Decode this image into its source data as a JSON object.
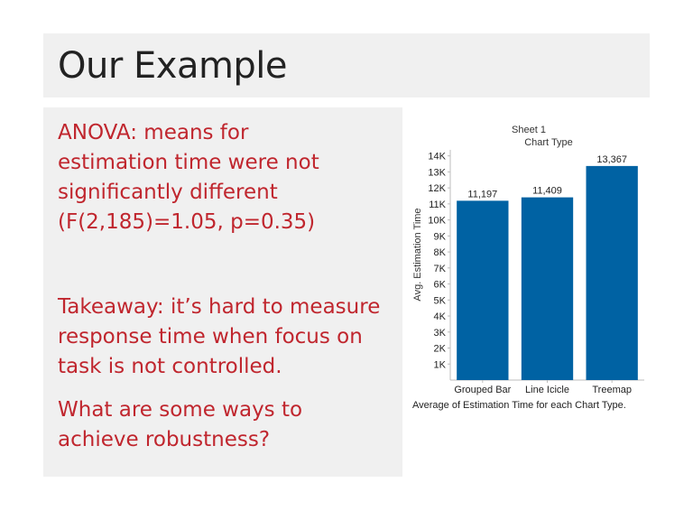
{
  "slide": {
    "title": "Our Example",
    "paragraph1_lines": [
      "ANOVA: means for",
      "estimation time were not",
      "significantly different",
      "(F(2,185)=1.05, p=0.35)"
    ],
    "paragraph2_lines": [
      "Takeaway: it’s hard to measure",
      "response time when focus on",
      "task is not controlled."
    ],
    "paragraph3_lines": [
      "What are some ways to",
      "achieve robustness?"
    ]
  },
  "colors": {
    "accent_text": "#c0262e",
    "bar": "#0062a3",
    "box_background": "#f0f0f0"
  },
  "chart_data": {
    "type": "bar",
    "title": "Sheet 1",
    "subtitle": "Chart Type",
    "categories": [
      "Grouped Bar",
      "Line Icicle",
      "Treemap"
    ],
    "values": [
      11197,
      11409,
      13367
    ],
    "value_labels": [
      "11,197",
      "11,409",
      "13,367"
    ],
    "ylabel": "Avg. Estimation Time",
    "xlabel": "",
    "caption": "Average of Estimation Time for each Chart Type.",
    "ylim": [
      0,
      14600
    ],
    "yticks": [
      1000,
      2000,
      3000,
      4000,
      5000,
      6000,
      7000,
      8000,
      9000,
      10000,
      11000,
      12000,
      13000,
      14000
    ],
    "ytick_labels": [
      "1K",
      "2K",
      "3K",
      "4K",
      "5K",
      "6K",
      "7K",
      "8K",
      "9K",
      "10K",
      "11K",
      "12K",
      "13K",
      "14K"
    ],
    "grid": false
  }
}
